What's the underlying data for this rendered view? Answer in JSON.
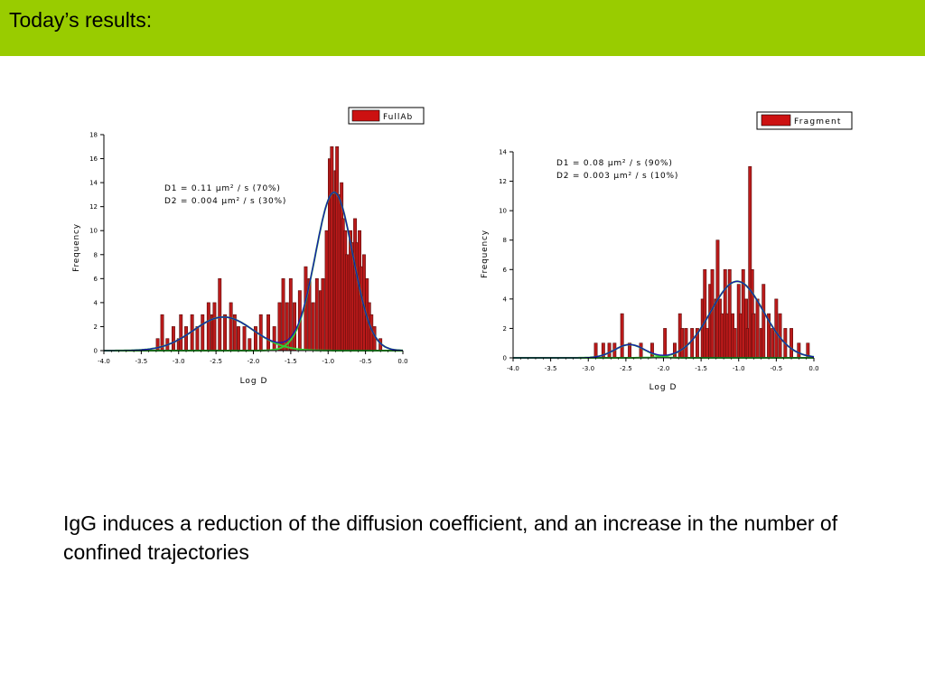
{
  "slide": {
    "title": "Today’s results:",
    "body_text": "IgG induces a reduction of the diffusion coefficient, and an increase in the number of confined trajectories"
  },
  "colors": {
    "header": "#99cc00",
    "bar_fill": "#bb1a1a",
    "bar_dark": "#5a0c0c",
    "fit_curve": "#33cc33",
    "component_curve": "#1a1ab0"
  },
  "chart_data": [
    {
      "type": "bar",
      "legend": "FullAb",
      "legend_position": "top-right",
      "xlabel": "Log D",
      "ylabel": "Frequency",
      "xlim": [
        -4.0,
        0.0
      ],
      "ylim": [
        0,
        18
      ],
      "x_ticks": [
        "-4.0",
        "-3.5",
        "-3.0",
        "-2.5",
        "-2.0",
        "-1.5",
        "-1.0",
        "-0.5",
        "0.0"
      ],
      "y_ticks": [
        "0",
        "2",
        "4",
        "6",
        "8",
        "10",
        "12",
        "14",
        "16",
        "18"
      ],
      "annotation_lines": [
        "D1 = 0.11 µm² / s  (70%)",
        "D2 = 0.004 µm² / s (30%)"
      ],
      "bin_width": 0.025,
      "bins": [
        [
          -3.28,
          1
        ],
        [
          -3.22,
          3
        ],
        [
          -3.15,
          1
        ],
        [
          -3.07,
          2
        ],
        [
          -3.0,
          1
        ],
        [
          -2.97,
          3
        ],
        [
          -2.9,
          2
        ],
        [
          -2.82,
          3
        ],
        [
          -2.75,
          2
        ],
        [
          -2.68,
          3
        ],
        [
          -2.6,
          4
        ],
        [
          -2.55,
          3
        ],
        [
          -2.52,
          4
        ],
        [
          -2.45,
          6
        ],
        [
          -2.38,
          3
        ],
        [
          -2.3,
          4
        ],
        [
          -2.25,
          3
        ],
        [
          -2.2,
          2
        ],
        [
          -2.12,
          2
        ],
        [
          -2.05,
          1
        ],
        [
          -1.97,
          2
        ],
        [
          -1.9,
          3
        ],
        [
          -1.8,
          3
        ],
        [
          -1.72,
          2
        ],
        [
          -1.65,
          4
        ],
        [
          -1.6,
          6
        ],
        [
          -1.55,
          4
        ],
        [
          -1.5,
          6
        ],
        [
          -1.45,
          4
        ],
        [
          -1.38,
          5
        ],
        [
          -1.3,
          7
        ],
        [
          -1.25,
          6
        ],
        [
          -1.2,
          4
        ],
        [
          -1.15,
          6
        ],
        [
          -1.1,
          5
        ],
        [
          -1.07,
          6
        ],
        [
          -1.02,
          10
        ],
        [
          -0.98,
          16
        ],
        [
          -0.95,
          17
        ],
        [
          -0.92,
          13
        ],
        [
          -0.9,
          15
        ],
        [
          -0.88,
          17
        ],
        [
          -0.85,
          13
        ],
        [
          -0.82,
          14
        ],
        [
          -0.8,
          11
        ],
        [
          -0.77,
          10
        ],
        [
          -0.75,
          8
        ],
        [
          -0.72,
          8
        ],
        [
          -0.7,
          10
        ],
        [
          -0.67,
          9
        ],
        [
          -0.64,
          11
        ],
        [
          -0.61,
          9
        ],
        [
          -0.58,
          10
        ],
        [
          -0.55,
          7
        ],
        [
          -0.52,
          8
        ],
        [
          -0.48,
          6
        ],
        [
          -0.45,
          4
        ],
        [
          -0.42,
          3
        ],
        [
          -0.38,
          2
        ],
        [
          -0.3,
          1
        ]
      ],
      "fit_components": [
        {
          "mean": -0.92,
          "sigma": 0.25,
          "amplitude": 13.2
        },
        {
          "mean": -2.4,
          "sigma": 0.4,
          "amplitude": 2.8
        }
      ]
    },
    {
      "type": "bar",
      "legend": "Fragment",
      "legend_position": "top-right",
      "xlabel": "Log D",
      "ylabel": "Frequency",
      "xlim": [
        -4.0,
        0.0
      ],
      "ylim": [
        0,
        14
      ],
      "x_ticks": [
        "-4.0",
        "-3.5",
        "-3.0",
        "-2.5",
        "-2.0",
        "-1.5",
        "-1.0",
        "-0.5",
        "0.0"
      ],
      "y_ticks": [
        "0",
        "2",
        "4",
        "6",
        "8",
        "10",
        "12",
        "14"
      ],
      "annotation_lines": [
        "D1 = 0.08 µm² / s  (90%)",
        "D2 = 0.003 µm² / s (10%)"
      ],
      "bin_width": 0.025,
      "bins": [
        [
          -2.9,
          1
        ],
        [
          -2.8,
          1
        ],
        [
          -2.72,
          1
        ],
        [
          -2.65,
          1
        ],
        [
          -2.55,
          3
        ],
        [
          -2.45,
          1
        ],
        [
          -2.3,
          1
        ],
        [
          -2.15,
          1
        ],
        [
          -1.98,
          2
        ],
        [
          -1.85,
          1
        ],
        [
          -1.78,
          3
        ],
        [
          -1.75,
          2
        ],
        [
          -1.7,
          2
        ],
        [
          -1.62,
          2
        ],
        [
          -1.55,
          2
        ],
        [
          -1.48,
          4
        ],
        [
          -1.45,
          6
        ],
        [
          -1.42,
          2
        ],
        [
          -1.38,
          5
        ],
        [
          -1.35,
          6
        ],
        [
          -1.3,
          4
        ],
        [
          -1.28,
          8
        ],
        [
          -1.25,
          4
        ],
        [
          -1.22,
          3
        ],
        [
          -1.18,
          6
        ],
        [
          -1.15,
          3
        ],
        [
          -1.12,
          6
        ],
        [
          -1.08,
          3
        ],
        [
          -1.05,
          2
        ],
        [
          -1.0,
          5
        ],
        [
          -0.97,
          3
        ],
        [
          -0.94,
          6
        ],
        [
          -0.9,
          4
        ],
        [
          -0.88,
          2
        ],
        [
          -0.85,
          13
        ],
        [
          -0.82,
          6
        ],
        [
          -0.8,
          3
        ],
        [
          -0.75,
          4
        ],
        [
          -0.7,
          2
        ],
        [
          -0.67,
          5
        ],
        [
          -0.6,
          3
        ],
        [
          -0.55,
          2
        ],
        [
          -0.5,
          4
        ],
        [
          -0.45,
          3
        ],
        [
          -0.38,
          2
        ],
        [
          -0.3,
          2
        ],
        [
          -0.2,
          1
        ],
        [
          -0.08,
          1
        ]
      ],
      "fit_components": [
        {
          "mean": -1.02,
          "sigma": 0.35,
          "amplitude": 5.2
        },
        {
          "mean": -2.45,
          "sigma": 0.2,
          "amplitude": 0.9
        }
      ]
    }
  ]
}
